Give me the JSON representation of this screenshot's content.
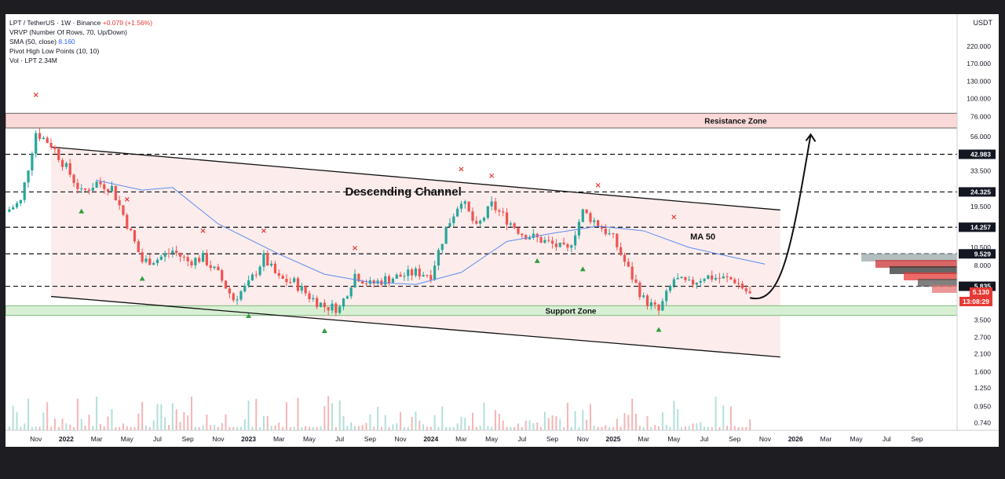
{
  "header": {
    "symbol": "LPT / TetherUS · 1W · Binance",
    "change": "+0.079 (+1.56%)",
    "indicators": {
      "vrvp": "VRVP (Number Of Rows, 70, Up/Down)",
      "sma_label": "SMA (50, close)",
      "sma_value": "8.160",
      "pivot": "Pivot High Low Points (10, 10)",
      "vol": "Vol · LPT  2.34M"
    }
  },
  "price_axis": {
    "currency": "USDT",
    "price_badge": "5.130",
    "countdown": "13:08:29"
  },
  "colors": {
    "up": "#26a69a",
    "down": "#ef5350",
    "channel_fill": "#fdecec",
    "resistance_fill": "#fbd9d9",
    "support_fill": "#d7f0d4",
    "sma_line": "#5b8def",
    "badge_dark": "#131722"
  },
  "chart_data": {
    "type": "candlestick",
    "y_scale": "log",
    "ylim": [
      0.7,
      300
    ],
    "y_ticks": [
      "220.000",
      "170.000",
      "130.000",
      "100.000",
      "76.000",
      "56.000",
      "33.500",
      "19.500",
      "10.500",
      "8.000",
      "3.500",
      "2.700",
      "2.100",
      "1.600",
      "1.250",
      "0.950",
      "0.740"
    ],
    "x_ticks": [
      "Nov",
      "2022",
      "Mar",
      "May",
      "Jul",
      "Sep",
      "Nov",
      "2023",
      "Mar",
      "May",
      "Jul",
      "Sep",
      "Nov",
      "2024",
      "Mar",
      "May",
      "Jul",
      "Sep",
      "Nov",
      "2025",
      "Mar",
      "May",
      "Jul",
      "Sep",
      "Nov",
      "2026",
      "Mar",
      "May",
      "Jul",
      "Sep"
    ],
    "x_range": [
      "2021-09",
      "2026-10"
    ],
    "current_price": 5.13,
    "levels": [
      42.983,
      24.325,
      14.257,
      9.529,
      5.835
    ],
    "level_style": "dashed",
    "resistance_zone": {
      "label": "Resistance Zone",
      "low": 64,
      "high": 80
    },
    "support_zone": {
      "label": "Support Zone",
      "low": 3.75,
      "high": 4.35
    },
    "descending_channel": {
      "label": "Descending Channel",
      "upper": [
        {
          "x": "2021-12",
          "y": 48
        },
        {
          "x": "2025-12",
          "y": 18.5
        }
      ],
      "lower": [
        {
          "x": "2021-12",
          "y": 5.0
        },
        {
          "x": "2025-12",
          "y": 2.0
        }
      ]
    },
    "projection": {
      "from": {
        "x": "2025-10",
        "y": 4.9
      },
      "to": {
        "x": "2026-02",
        "y": 58
      }
    },
    "sma_label": "MA 50",
    "sma": [
      {
        "x": "2022-03",
        "y": 29
      },
      {
        "x": "2022-06",
        "y": 25
      },
      {
        "x": "2022-08",
        "y": 26
      },
      {
        "x": "2022-11",
        "y": 15
      },
      {
        "x": "2023-03",
        "y": 9.5
      },
      {
        "x": "2023-06",
        "y": 7.0
      },
      {
        "x": "2023-09",
        "y": 6.2
      },
      {
        "x": "2023-12",
        "y": 6.0
      },
      {
        "x": "2024-03",
        "y": 7.2
      },
      {
        "x": "2024-06",
        "y": 11.5
      },
      {
        "x": "2024-09",
        "y": 13.0
      },
      {
        "x": "2024-12",
        "y": 14.5
      },
      {
        "x": "2025-03",
        "y": 13.5
      },
      {
        "x": "2025-06",
        "y": 10.5
      },
      {
        "x": "2025-09",
        "y": 9.0
      },
      {
        "x": "2025-11",
        "y": 8.16
      }
    ],
    "pivot_highs": [
      {
        "x": "2021-11",
        "y": 102
      },
      {
        "x": "2022-05",
        "y": 21
      },
      {
        "x": "2022-10",
        "y": 13
      },
      {
        "x": "2023-02",
        "y": 13
      },
      {
        "x": "2023-08",
        "y": 10
      },
      {
        "x": "2024-03",
        "y": 33
      },
      {
        "x": "2024-05",
        "y": 30
      },
      {
        "x": "2024-12",
        "y": 26
      },
      {
        "x": "2025-05",
        "y": 16
      }
    ],
    "pivot_lows": [
      {
        "x": "2022-02",
        "y": 18
      },
      {
        "x": "2022-06",
        "y": 6.5
      },
      {
        "x": "2023-01",
        "y": 3.7
      },
      {
        "x": "2023-06",
        "y": 2.95
      },
      {
        "x": "2024-08",
        "y": 8.5
      },
      {
        "x": "2024-11",
        "y": 7.5
      },
      {
        "x": "2025-04",
        "y": 3.0
      }
    ],
    "close_path": [
      {
        "x": "2021-09",
        "y": 18
      },
      {
        "x": "2021-10",
        "y": 21
      },
      {
        "x": "2021-11",
        "y": 60
      },
      {
        "x": "2021-12",
        "y": 50
      },
      {
        "x": "2022-01",
        "y": 35
      },
      {
        "x": "2022-02",
        "y": 24
      },
      {
        "x": "2022-03",
        "y": 28
      },
      {
        "x": "2022-04",
        "y": 26
      },
      {
        "x": "2022-05",
        "y": 15
      },
      {
        "x": "2022-06",
        "y": 8.5
      },
      {
        "x": "2022-07",
        "y": 8.8
      },
      {
        "x": "2022-08",
        "y": 10
      },
      {
        "x": "2022-09",
        "y": 8.5
      },
      {
        "x": "2022-10",
        "y": 9.0
      },
      {
        "x": "2022-11",
        "y": 7.0
      },
      {
        "x": "2022-12",
        "y": 4.8
      },
      {
        "x": "2023-01",
        "y": 6.0
      },
      {
        "x": "2023-02",
        "y": 9.0
      },
      {
        "x": "2023-03",
        "y": 6.5
      },
      {
        "x": "2023-04",
        "y": 6.2
      },
      {
        "x": "2023-05",
        "y": 5.0
      },
      {
        "x": "2023-06",
        "y": 4.3
      },
      {
        "x": "2023-07",
        "y": 4.2
      },
      {
        "x": "2023-08",
        "y": 7.0
      },
      {
        "x": "2023-09",
        "y": 6.0
      },
      {
        "x": "2023-10",
        "y": 6.5
      },
      {
        "x": "2023-11",
        "y": 6.8
      },
      {
        "x": "2023-12",
        "y": 7.2
      },
      {
        "x": "2024-01",
        "y": 7.0
      },
      {
        "x": "2024-02",
        "y": 14
      },
      {
        "x": "2024-03",
        "y": 22
      },
      {
        "x": "2024-04",
        "y": 14
      },
      {
        "x": "2024-05",
        "y": 20
      },
      {
        "x": "2024-06",
        "y": 16
      },
      {
        "x": "2024-07",
        "y": 13
      },
      {
        "x": "2024-08",
        "y": 12
      },
      {
        "x": "2024-09",
        "y": 11
      },
      {
        "x": "2024-10",
        "y": 10
      },
      {
        "x": "2024-11",
        "y": 18
      },
      {
        "x": "2024-12",
        "y": 15
      },
      {
        "x": "2025-01",
        "y": 12
      },
      {
        "x": "2025-02",
        "y": 7.5
      },
      {
        "x": "2025-03",
        "y": 4.8
      },
      {
        "x": "2025-04",
        "y": 4.0
      },
      {
        "x": "2025-05",
        "y": 6.5
      },
      {
        "x": "2025-06",
        "y": 6.0
      },
      {
        "x": "2025-07",
        "y": 6.8
      },
      {
        "x": "2025-08",
        "y": 6.6
      },
      {
        "x": "2025-09",
        "y": 6.4
      },
      {
        "x": "2025-10",
        "y": 5.13
      }
    ]
  }
}
